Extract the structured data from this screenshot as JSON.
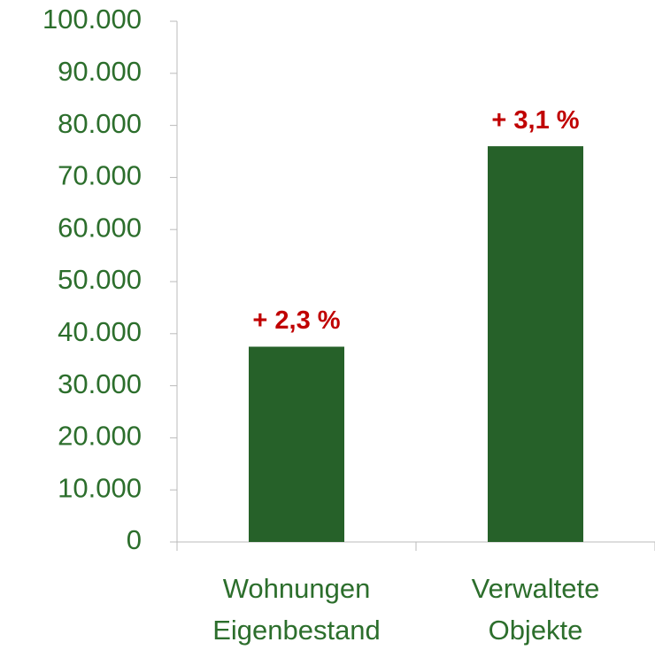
{
  "chart_data": {
    "type": "bar",
    "categories": [
      "Wohnungen Eigenbestand",
      "Verwaltete Objekte"
    ],
    "values": [
      37500,
      76000
    ],
    "annotations": [
      "+ 2,3 %",
      "+ 3,1 %"
    ],
    "color": "#266129",
    "ylim": [
      0,
      100000
    ],
    "yticks": [
      0,
      {
        "value": 10000,
        "label": "10.000"
      },
      {
        "value": 20000,
        "label": "20.000"
      },
      {
        "value": 30000,
        "label": "30.000"
      },
      {
        "value": 40000,
        "label": "40.000"
      },
      {
        "value": 50000,
        "label": "50.000"
      },
      {
        "value": 60000,
        "label": "60.000"
      },
      {
        "value": 70000,
        "label": "70.000"
      },
      {
        "value": 80000,
        "label": "80.000"
      },
      {
        "value": 90000,
        "label": "90.000"
      },
      {
        "value": 100000,
        "label": "100.000"
      }
    ],
    "grid": false
  }
}
